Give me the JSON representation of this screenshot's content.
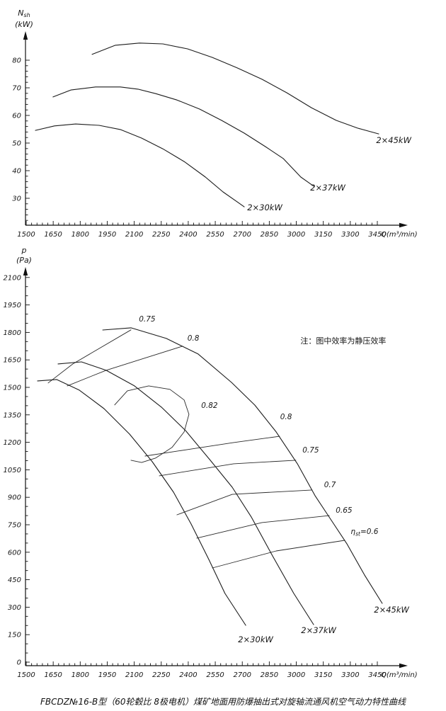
{
  "page": {
    "background": "#ffffff",
    "line_color": "#1c1c1c",
    "caption": "FBCDZ№16-B型（60轮毂比 8极电机）煤矿地面用防爆抽出式对旋轴流通风机空气动力特性曲线"
  },
  "chart_data": [
    {
      "id": "power",
      "type": "line",
      "title": "",
      "x_axis": {
        "label": "Q(m³/min)",
        "min": 1500,
        "max": 3450,
        "ticks": [
          1500,
          1650,
          1800,
          1950,
          2100,
          2250,
          2400,
          2550,
          2700,
          2850,
          3000,
          3150,
          3300,
          3450
        ]
      },
      "y_axis": {
        "symbol": "N",
        "symbol_sub": "sh",
        "unit": "(kW)",
        "min": 30,
        "max": 80,
        "ticks": [
          30,
          40,
          50,
          60,
          70,
          80
        ]
      },
      "grid": false,
      "series": [
        {
          "name": "2×45kW",
          "points": [
            [
              1866,
              82.1
            ],
            [
              1995,
              85.4
            ],
            [
              2129,
              86.2
            ],
            [
              2259,
              85.9
            ],
            [
              2396,
              84.1
            ],
            [
              2534,
              81.0
            ],
            [
              2672,
              77.2
            ],
            [
              2809,
              73.1
            ],
            [
              2947,
              68.2
            ],
            [
              3084,
              62.8
            ],
            [
              3222,
              58.2
            ],
            [
              3340,
              55.4
            ],
            [
              3458,
              53.3
            ]
          ]
        },
        {
          "name": "2×37kW",
          "points": [
            [
              1649,
              66.7
            ],
            [
              1748,
              69.2
            ],
            [
              1885,
              70.3
            ],
            [
              2023,
              70.3
            ],
            [
              2121,
              69.5
            ],
            [
              2219,
              67.9
            ],
            [
              2337,
              65.6
            ],
            [
              2463,
              62.3
            ],
            [
              2585,
              58.2
            ],
            [
              2711,
              53.6
            ],
            [
              2829,
              48.7
            ],
            [
              2927,
              44.4
            ],
            [
              3025,
              37.7
            ],
            [
              3096,
              34.4
            ]
          ]
        },
        {
          "name": "2×30kW",
          "points": [
            [
              1551,
              54.6
            ],
            [
              1657,
              56.2
            ],
            [
              1775,
              56.9
            ],
            [
              1905,
              56.4
            ],
            [
              2023,
              54.9
            ],
            [
              2141,
              51.8
            ],
            [
              2259,
              47.9
            ],
            [
              2377,
              43.3
            ],
            [
              2495,
              37.7
            ],
            [
              2593,
              32.3
            ],
            [
              2672,
              28.7
            ],
            [
              2711,
              26.9
            ]
          ]
        }
      ],
      "labels": [
        {
          "text": "2×45kW",
          "x": 3541,
          "y": 50.0,
          "kind": "curve"
        },
        {
          "text": "2×37kW",
          "x": 3175,
          "y": 32.8,
          "kind": "curve"
        },
        {
          "text": "2×30kW",
          "x": 2825,
          "y": 25.6,
          "kind": "curve"
        }
      ]
    },
    {
      "id": "pressure",
      "type": "line",
      "title": "",
      "x_axis": {
        "label": "Q(m³/min)",
        "min": 1500,
        "max": 3450,
        "ticks": [
          1500,
          1650,
          1800,
          1950,
          2100,
          2250,
          2400,
          2550,
          2700,
          2850,
          3000,
          3150,
          3300,
          3450
        ]
      },
      "y_axis": {
        "symbol": "p",
        "symbol_sub": "",
        "unit": "(Pa)",
        "min": 0,
        "max": 2100,
        "ticks": [
          0,
          150,
          300,
          450,
          600,
          750,
          900,
          1050,
          1200,
          1350,
          1500,
          1650,
          1800,
          1950,
          2100
        ]
      },
      "grid": false,
      "note": {
        "text": "注：图中效率为静压效率",
        "x": 3261,
        "y": 1740
      },
      "series": [
        {
          "name": "2×45kW",
          "points": [
            [
              1925,
              1813
            ],
            [
              2082,
              1825
            ],
            [
              2278,
              1767
            ],
            [
              2455,
              1682
            ],
            [
              2640,
              1527
            ],
            [
              2770,
              1403
            ],
            [
              2888,
              1257
            ],
            [
              3006,
              1083
            ],
            [
              3104,
              909
            ],
            [
              3190,
              781
            ],
            [
              3281,
              646
            ],
            [
              3379,
              476
            ],
            [
              3477,
              321
            ]
          ]
        },
        {
          "name": "2×37kW",
          "points": [
            [
              1677,
              1628
            ],
            [
              1807,
              1639
            ],
            [
              1944,
              1593
            ],
            [
              2101,
              1508
            ],
            [
              2251,
              1392
            ],
            [
              2385,
              1264
            ],
            [
              2522,
              1102
            ],
            [
              2644,
              955
            ],
            [
              2750,
              793
            ],
            [
              2868,
              580
            ],
            [
              2986,
              375
            ],
            [
              3096,
              205
            ]
          ]
        },
        {
          "name": "2×30kW",
          "points": [
            [
              1563,
              1535
            ],
            [
              1669,
              1543
            ],
            [
              1795,
              1485
            ],
            [
              1932,
              1384
            ],
            [
              2074,
              1245
            ],
            [
              2200,
              1094
            ],
            [
              2318,
              928
            ],
            [
              2416,
              754
            ],
            [
              2514,
              561
            ],
            [
              2604,
              375
            ],
            [
              2719,
              201
            ]
          ]
        }
      ],
      "contours": [
        {
          "efficiency": 0.75,
          "side": "left",
          "points": [
            [
              1622,
              1524
            ],
            [
              1759,
              1628
            ],
            [
              2082,
              1814
            ]
          ]
        },
        {
          "efficiency": 0.8,
          "side": "left",
          "points": [
            [
              1728,
              1508
            ],
            [
              1944,
              1593
            ],
            [
              2369,
              1725
            ]
          ]
        },
        {
          "efficiency": 0.82,
          "side": "loop",
          "points": [
            [
              1991,
              1404
            ],
            [
              2062,
              1481
            ],
            [
              2180,
              1508
            ],
            [
              2298,
              1489
            ],
            [
              2377,
              1431
            ],
            [
              2404,
              1353
            ],
            [
              2377,
              1257
            ],
            [
              2310,
              1172
            ],
            [
              2219,
              1114
            ],
            [
              2141,
              1090
            ],
            [
              2082,
              1102
            ]
          ]
        },
        {
          "efficiency": 0.8,
          "side": "right",
          "points": [
            [
              2160,
              1125
            ],
            [
              2652,
              1199
            ],
            [
              2907,
              1233
            ]
          ]
        },
        {
          "efficiency": 0.75,
          "side": "right",
          "points": [
            [
              2239,
              1017
            ],
            [
              2652,
              1083
            ],
            [
              2998,
              1102
            ]
          ]
        },
        {
          "efficiency": 0.7,
          "side": "right",
          "points": [
            [
              2337,
              804
            ],
            [
              2644,
              916
            ],
            [
              3088,
              940
            ]
          ]
        },
        {
          "efficiency": 0.65,
          "side": "right",
          "points": [
            [
              2447,
              677
            ],
            [
              2809,
              762
            ],
            [
              3183,
              800
            ]
          ]
        },
        {
          "efficiency": 0.6,
          "side": "right",
          "points": [
            [
              2534,
              514
            ],
            [
              2888,
              607
            ],
            [
              3269,
              665
            ]
          ]
        }
      ],
      "labels": [
        {
          "text": "0.75",
          "x": 2172,
          "y": 1860,
          "kind": "eff"
        },
        {
          "text": "0.8",
          "x": 2428,
          "y": 1756,
          "kind": "eff"
        },
        {
          "text": "0.82",
          "x": 2518,
          "y": 1388,
          "kind": "eff"
        },
        {
          "text": "0.8",
          "x": 2943,
          "y": 1326,
          "kind": "eff"
        },
        {
          "text": "0.75",
          "x": 3080,
          "y": 1145,
          "kind": "eff"
        },
        {
          "text": "0.7",
          "x": 3187,
          "y": 955,
          "kind": "eff"
        },
        {
          "text": "0.65",
          "x": 3265,
          "y": 816,
          "kind": "eff"
        },
        {
          "text": "ηst=0.6",
          "eta_base": "η",
          "eta_sub": "st",
          "eta_rest": "=0.6",
          "x": 3379,
          "y": 700,
          "kind": "eff"
        },
        {
          "text": "2×30kW",
          "x": 2774,
          "y": 108,
          "kind": "curve"
        },
        {
          "text": "2×37kW",
          "x": 3124,
          "y": 159,
          "kind": "curve"
        },
        {
          "text": "2×45kW",
          "x": 3529,
          "y": 271,
          "kind": "curve"
        }
      ]
    }
  ]
}
